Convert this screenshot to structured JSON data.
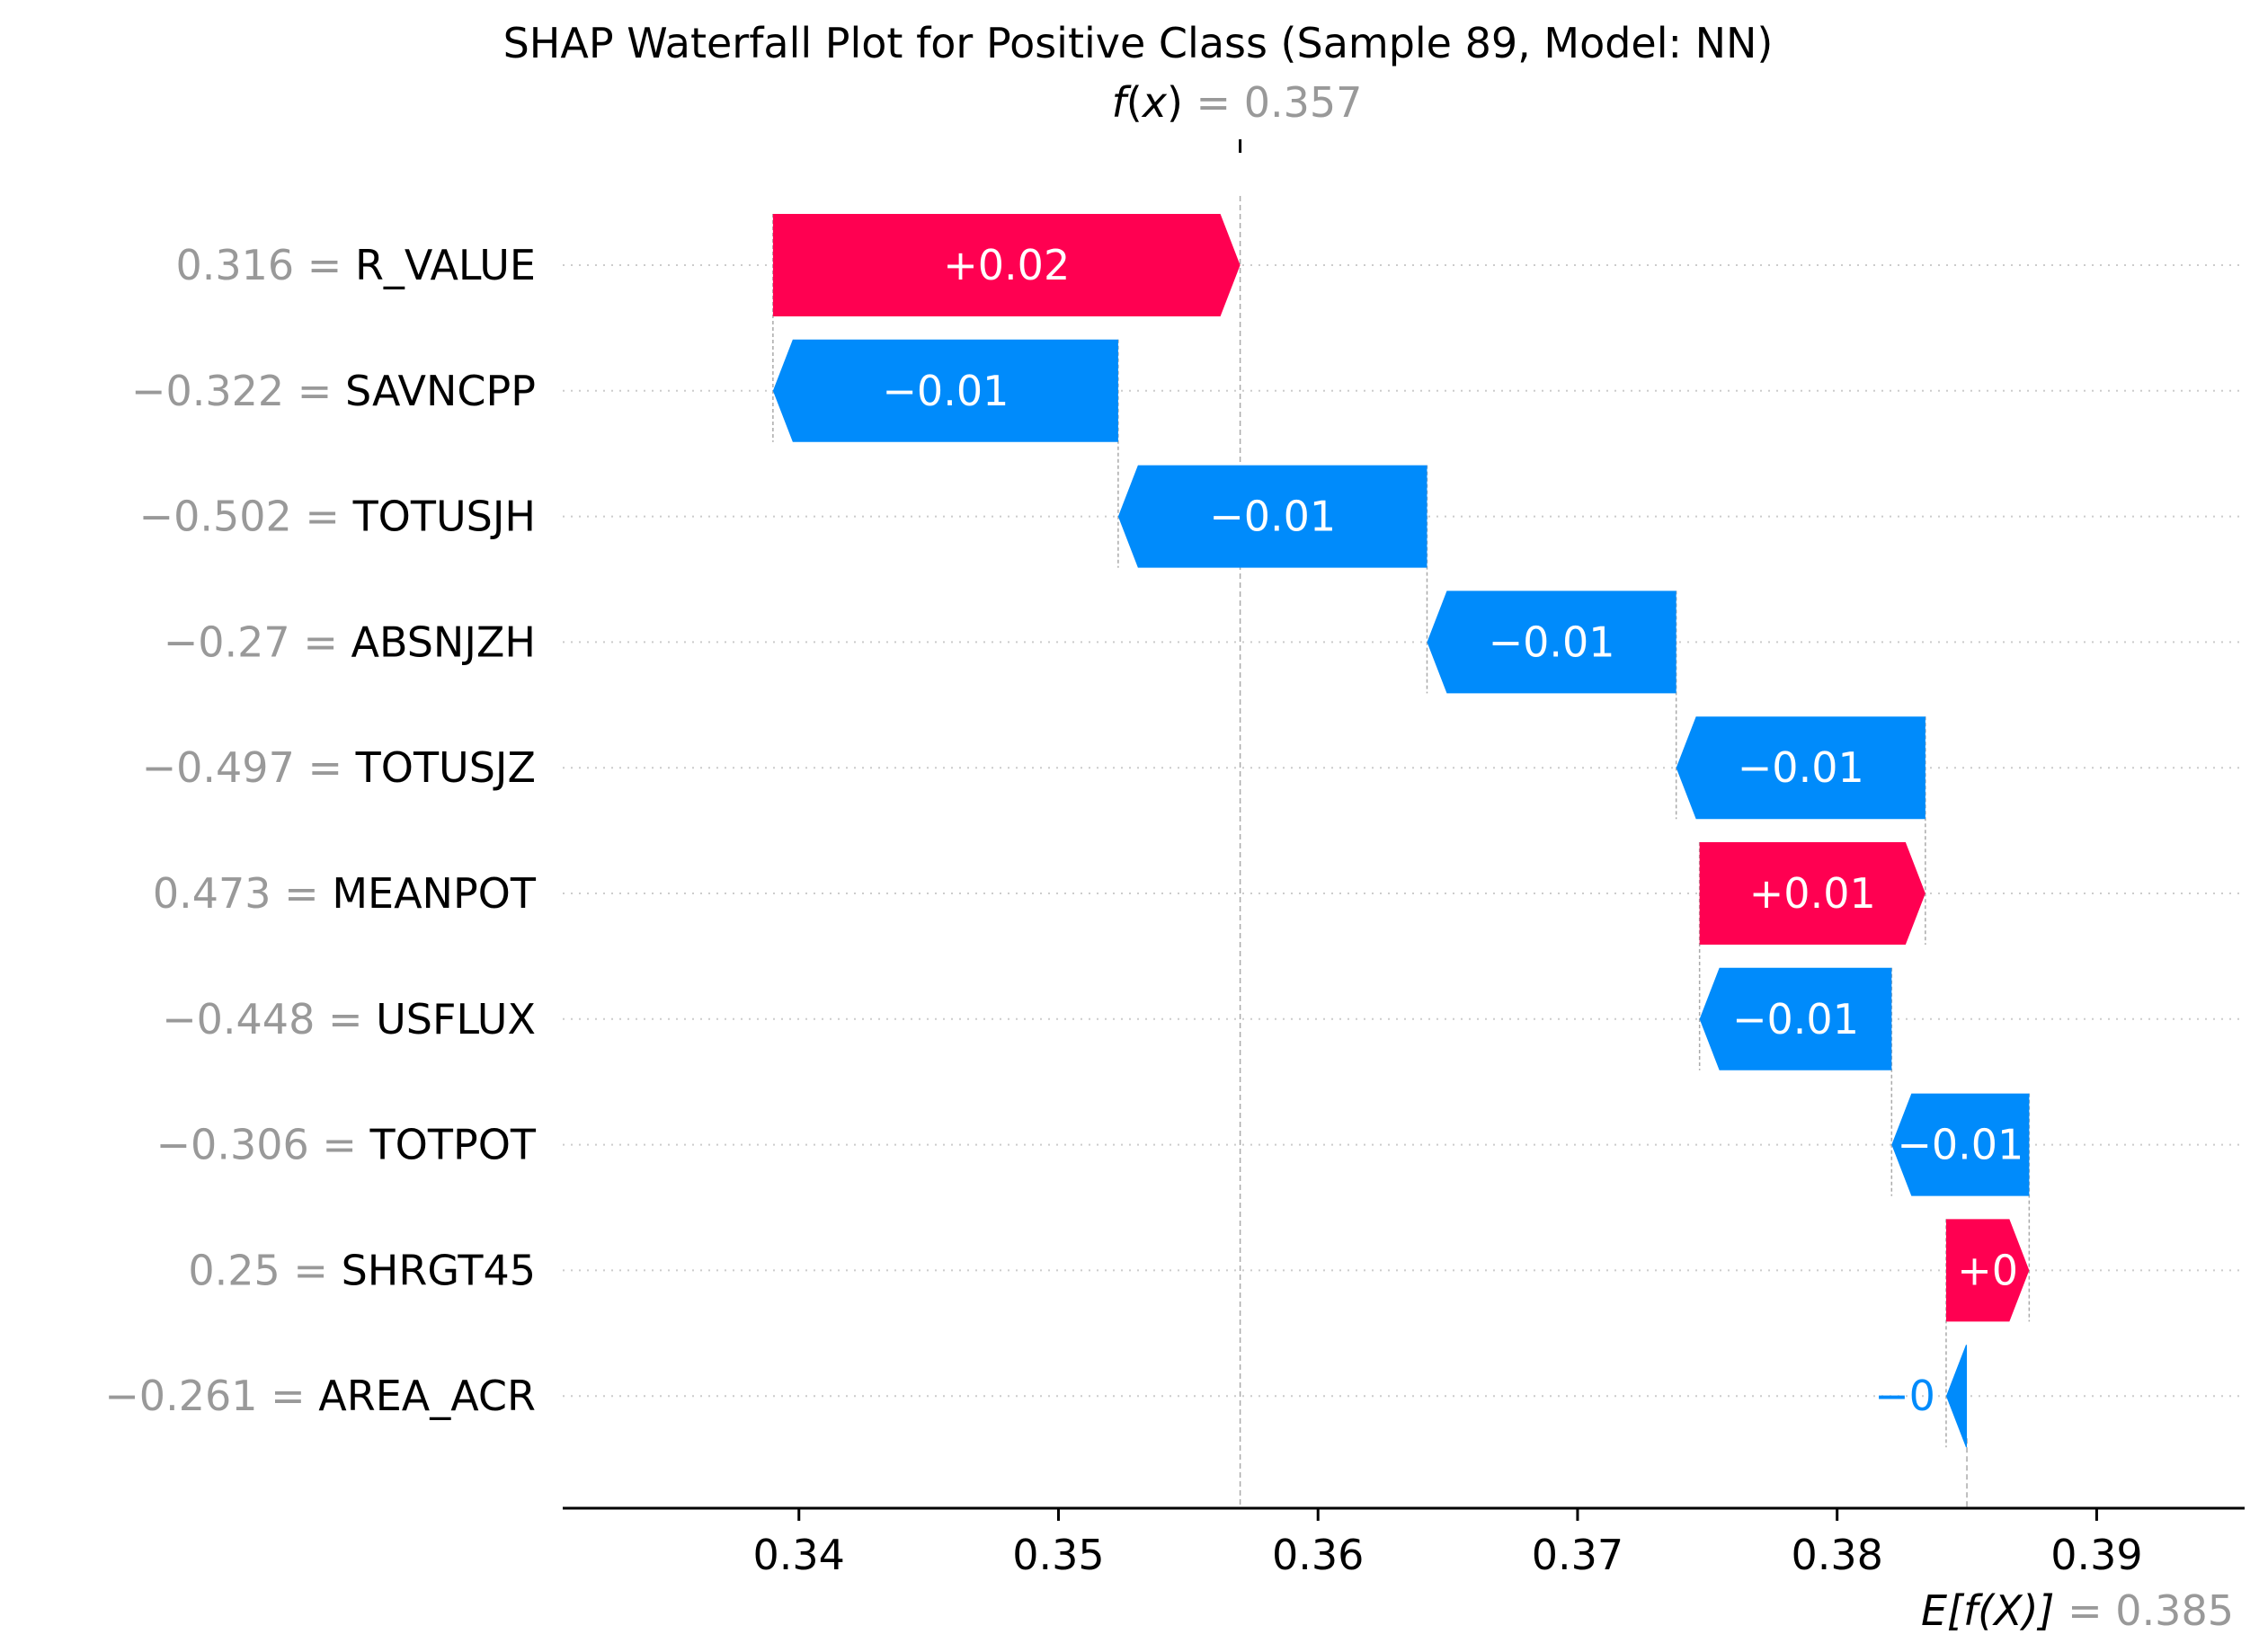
{
  "chart_data": {
    "type": "waterfall",
    "title": "SHAP Waterfall Plot for Positive Class (Sample 89, Model: NN)",
    "fx": {
      "label_fn": "f",
      "label_arg": "x",
      "eq": " = ",
      "value": 0.357,
      "value_text": "0.357"
    },
    "efx": {
      "label": "E[f(X)]",
      "eq": " = ",
      "value": 0.385,
      "value_text": "0.385"
    },
    "xlim": [
      0.3309,
      0.3957
    ],
    "xticks": [
      {
        "value": 0.34,
        "label": "0.34"
      },
      {
        "value": 0.35,
        "label": "0.35"
      },
      {
        "value": 0.36,
        "label": "0.36"
      },
      {
        "value": 0.37,
        "label": "0.37"
      },
      {
        "value": 0.38,
        "label": "0.38"
      },
      {
        "value": 0.39,
        "label": "0.39"
      }
    ],
    "colors": {
      "positive": "#ff0051",
      "negative": "#008bfb",
      "value_gray": "#999999",
      "text": "#000000",
      "axis": "#000000",
      "grid": "#cccccc"
    },
    "features": [
      {
        "value": "0.316",
        "eq": " = ",
        "name": "R_VALUE",
        "start": 0.339,
        "end": 0.357,
        "label": "+0.02",
        "sign": "positive"
      },
      {
        "value": "−0.322",
        "eq": " = ",
        "name": "SAVNCPP",
        "start": 0.3523,
        "end": 0.339,
        "label": "−0.01",
        "sign": "negative"
      },
      {
        "value": "−0.502",
        "eq": " = ",
        "name": "TOTUSJH",
        "start": 0.3642,
        "end": 0.3523,
        "label": "−0.01",
        "sign": "negative"
      },
      {
        "value": "−0.27",
        "eq": " = ",
        "name": "ABSNJZH",
        "start": 0.3738,
        "end": 0.3642,
        "label": "−0.01",
        "sign": "negative"
      },
      {
        "value": "−0.497",
        "eq": " = ",
        "name": "TOTUSJZ",
        "start": 0.3834,
        "end": 0.3738,
        "label": "−0.01",
        "sign": "negative"
      },
      {
        "value": "0.473",
        "eq": " = ",
        "name": "MEANPOT",
        "start": 0.3747,
        "end": 0.3834,
        "label": "+0.01",
        "sign": "positive"
      },
      {
        "value": "−0.448",
        "eq": " = ",
        "name": "USFLUX",
        "start": 0.3821,
        "end": 0.3747,
        "label": "−0.01",
        "sign": "negative"
      },
      {
        "value": "−0.306",
        "eq": " = ",
        "name": "TOTPOT",
        "start": 0.3874,
        "end": 0.3821,
        "label": "−0.01",
        "sign": "negative"
      },
      {
        "value": "0.25",
        "eq": " = ",
        "name": "SHRGT45",
        "start": 0.3842,
        "end": 0.3874,
        "label": "+0",
        "sign": "positive"
      },
      {
        "value": "−0.261",
        "eq": " = ",
        "name": "AREA_ACR",
        "start": 0.385,
        "end": 0.3842,
        "label": "−0",
        "sign": "negative"
      }
    ]
  }
}
